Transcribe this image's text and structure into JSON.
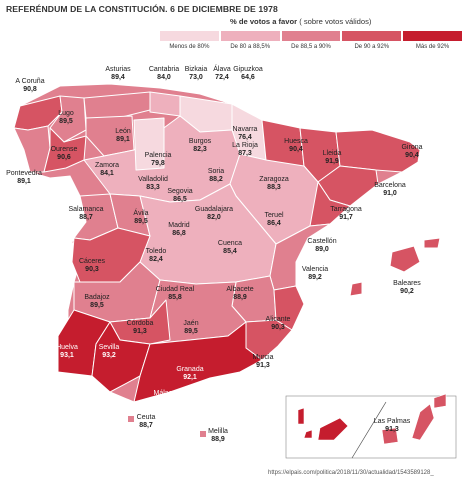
{
  "title": "REFERÉNDUM DE LA CONSTITUCIÓN. 6 DE DICIEMBRE DE 1978",
  "legend": {
    "title_bold": "% de votos a favor",
    "title_rest": "( sobre votos válidos)",
    "bins": [
      {
        "label": "Menos de 80%",
        "color": "#f6d9df"
      },
      {
        "label": "De 80 a 88,5%",
        "color": "#eeb0bd"
      },
      {
        "label": "De 88,5 a 90%",
        "color": "#e0808f"
      },
      {
        "label": "De 90 a 92%",
        "color": "#d65463"
      },
      {
        "label": "Más de 92%",
        "color": "#c51d2e"
      }
    ]
  },
  "provinces": [
    {
      "name": "A Coruña",
      "value": "90,8",
      "bin": 3
    },
    {
      "name": "Lugo",
      "value": "89,5",
      "bin": 2
    },
    {
      "name": "Asturias",
      "value": "89,4",
      "bin": 2
    },
    {
      "name": "Cantabria",
      "value": "84,0",
      "bin": 1
    },
    {
      "name": "Bizkaia",
      "value": "73,0",
      "bin": 0
    },
    {
      "name": "Álava",
      "value": "72,4",
      "bin": 0
    },
    {
      "name": "Gipuzkoa",
      "value": "64,6",
      "bin": 0
    },
    {
      "name": "Navarra",
      "value": "76,4",
      "bin": 0
    },
    {
      "name": "Huesca",
      "value": "90,4",
      "bin": 3
    },
    {
      "name": "Lleida",
      "value": "91,9",
      "bin": 3
    },
    {
      "name": "Girona",
      "value": "90,4",
      "bin": 3
    },
    {
      "name": "Pontevedra",
      "value": "89,1",
      "bin": 2
    },
    {
      "name": "Ourense",
      "value": "90,6",
      "bin": 3
    },
    {
      "name": "León",
      "value": "89,1",
      "bin": 2
    },
    {
      "name": "Palencia",
      "value": "79,8",
      "bin": 0
    },
    {
      "name": "Burgos",
      "value": "82,3",
      "bin": 1
    },
    {
      "name": "La Rioja",
      "value": "87,3",
      "bin": 1
    },
    {
      "name": "Zaragoza",
      "value": "88,3",
      "bin": 1
    },
    {
      "name": "Barcelona",
      "value": "91,0",
      "bin": 3
    },
    {
      "name": "Tarragona",
      "value": "91,7",
      "bin": 3
    },
    {
      "name": "Zamora",
      "value": "84,1",
      "bin": 1
    },
    {
      "name": "Valladolid",
      "value": "83,3",
      "bin": 1
    },
    {
      "name": "Soria",
      "value": "88,2",
      "bin": 1
    },
    {
      "name": "Segovia",
      "value": "86,5",
      "bin": 1
    },
    {
      "name": "Teruel",
      "value": "86,4",
      "bin": 1
    },
    {
      "name": "Salamanca",
      "value": "88,7",
      "bin": 2
    },
    {
      "name": "Ávila",
      "value": "89,5",
      "bin": 2
    },
    {
      "name": "Guadalajara",
      "value": "82,0",
      "bin": 1
    },
    {
      "name": "Madrid",
      "value": "86,8",
      "bin": 1
    },
    {
      "name": "Castellón",
      "value": "89,0",
      "bin": 2
    },
    {
      "name": "Cáceres",
      "value": "90,3",
      "bin": 3
    },
    {
      "name": "Toledo",
      "value": "82,4",
      "bin": 1
    },
    {
      "name": "Cuenca",
      "value": "85,4",
      "bin": 1
    },
    {
      "name": "Valencia",
      "value": "89,2",
      "bin": 2
    },
    {
      "name": "Baleares",
      "value": "90,2",
      "bin": 3
    },
    {
      "name": "Badajoz",
      "value": "89,5",
      "bin": 2
    },
    {
      "name": "Ciudad Real",
      "value": "85,8",
      "bin": 1
    },
    {
      "name": "Albacete",
      "value": "88,9",
      "bin": 2
    },
    {
      "name": "Alicante",
      "value": "90,3",
      "bin": 3
    },
    {
      "name": "Córdoba",
      "value": "91,3",
      "bin": 3
    },
    {
      "name": "Jaén",
      "value": "89,5",
      "bin": 2
    },
    {
      "name": "Murcia",
      "value": "91,3",
      "bin": 3
    },
    {
      "name": "Huelva",
      "value": "93,1",
      "bin": 4
    },
    {
      "name": "Sevilla",
      "value": "93,2",
      "bin": 4
    },
    {
      "name": "Granada",
      "value": "92,1",
      "bin": 4
    },
    {
      "name": "Almería",
      "value": "93,2",
      "bin": 4
    },
    {
      "name": "Cádiz",
      "value": "93,5",
      "bin": 4
    },
    {
      "name": "Málaga",
      "value": "92,8",
      "bin": 4
    },
    {
      "name": "Ceuta",
      "value": "88,7",
      "bin": 2
    },
    {
      "name": "Melilla",
      "value": "88,9",
      "bin": 2
    },
    {
      "name": "Tenerife",
      "value": "93,6",
      "bin": 4
    },
    {
      "name": "Las Palmas",
      "value": "91,3",
      "bin": 3
    }
  ],
  "source": "https://elpais.com/politica/2018/11/30/actualidad/1543589128_"
}
